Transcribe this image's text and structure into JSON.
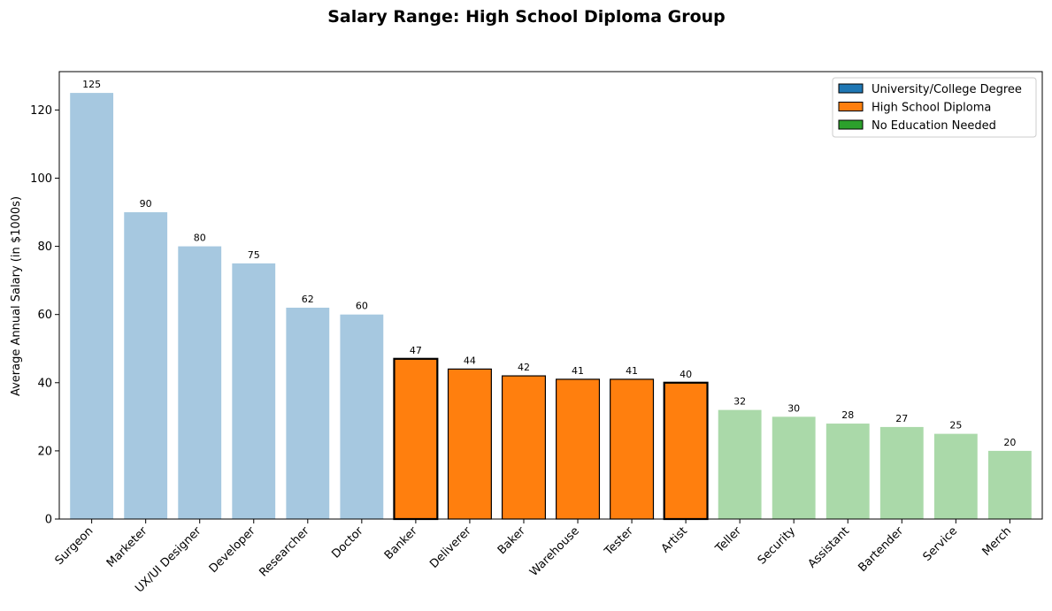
{
  "chart_data": {
    "type": "bar",
    "title": "Salary Range: High School Diploma Group",
    "xlabel": "",
    "ylabel": "Average Annual Salary (in $1000s)",
    "ylim": [
      0,
      131.25
    ],
    "yticks": [
      0,
      20,
      40,
      60,
      80,
      100,
      120
    ],
    "categories": [
      "Surgeon",
      "Marketer",
      "UX/UI Designer",
      "Developer",
      "Researcher",
      "Doctor",
      "Banker",
      "Deliverer",
      "Baker",
      "Warehouse",
      "Tester",
      "Artist",
      "Teller",
      "Security",
      "Assistant",
      "Bartender",
      "Service",
      "Merch"
    ],
    "values": [
      125,
      90,
      80,
      75,
      62,
      60,
      47,
      44,
      42,
      41,
      41,
      40,
      32,
      30,
      28,
      27,
      25,
      20
    ],
    "groups": [
      "University/College Degree",
      "University/College Degree",
      "University/College Degree",
      "University/College Degree",
      "University/College Degree",
      "University/College Degree",
      "High School Diploma",
      "High School Diploma",
      "High School Diploma",
      "High School Diploma",
      "High School Diploma",
      "High School Diploma",
      "No Education Needed",
      "No Education Needed",
      "No Education Needed",
      "No Education Needed",
      "No Education Needed",
      "No Education Needed"
    ],
    "highlighted_group": "High School Diploma",
    "group_max_outlined": [
      "Banker",
      "Artist"
    ],
    "legend": {
      "placement": "top-right",
      "entries": [
        {
          "label": "University/College Degree",
          "color": "#1f77b4"
        },
        {
          "label": "High School Diploma",
          "color": "#ff7f0e"
        },
        {
          "label": "No Education Needed",
          "color": "#2ca02c"
        }
      ]
    },
    "colors": {
      "University/College Degree": {
        "full": "#1f77b4",
        "faded": "#a6c8e0"
      },
      "High School Diploma": {
        "full": "#ff7f0e",
        "faded": "#ffbf86"
      },
      "No Education Needed": {
        "full": "#2ca02c",
        "faded": "#aad9a9"
      }
    },
    "grid": false
  }
}
